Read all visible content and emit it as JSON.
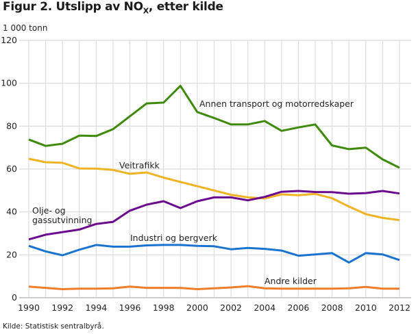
{
  "title_main": "Figur 2. Utslipp av NO",
  "title_sub": "X",
  "title_rest": ", etter kilde",
  "source": "Kilde: Statistisk sentralbyrå.",
  "chart_data": {
    "type": "line",
    "title": "Figur 2. Utslipp av NOX, etter kilde",
    "ylabel": "1 000 tonn",
    "xlabel": "",
    "ylim": [
      0,
      120
    ],
    "xlim": [
      1990,
      2012
    ],
    "yticks": [
      0,
      20,
      40,
      60,
      80,
      100,
      120
    ],
    "xticks": [
      1990,
      1992,
      1994,
      1996,
      1998,
      2000,
      2002,
      2004,
      2006,
      2008,
      2010,
      2012
    ],
    "grid": true,
    "x": [
      1990,
      1991,
      1992,
      1993,
      1994,
      1995,
      1996,
      1997,
      1998,
      1999,
      2000,
      2001,
      2002,
      2003,
      2004,
      2005,
      2006,
      2007,
      2008,
      2009,
      2010,
      2011,
      2012
    ],
    "series": [
      {
        "name": "Annen transport og motorredskaper",
        "color": "#3e8a0a",
        "values": [
          73.8,
          70.8,
          71.8,
          75.6,
          75.4,
          78.6,
          84.6,
          90.6,
          91.0,
          98.8,
          86.6,
          83.8,
          80.8,
          80.8,
          82.4,
          77.8,
          79.4,
          80.8,
          71.0,
          69.3,
          70.0,
          64.5,
          60.6
        ]
      },
      {
        "name": "Veitrafikk",
        "color": "#f0b323",
        "values": [
          64.8,
          63.2,
          62.9,
          60.3,
          60.2,
          59.6,
          57.8,
          58.4,
          56.0,
          54.0,
          52.0,
          50.0,
          48.0,
          46.8,
          46.3,
          48.2,
          47.8,
          48.4,
          46.4,
          42.5,
          39.0,
          37.2,
          36.2
        ]
      },
      {
        "name": "Olje- og gassutvinning",
        "color": "#6b0a8e",
        "values": [
          27.2,
          29.4,
          30.6,
          31.8,
          34.4,
          35.4,
          40.6,
          43.4,
          45.0,
          41.8,
          45.0,
          46.8,
          46.8,
          45.4,
          47.0,
          49.4,
          49.8,
          49.3,
          49.2,
          48.5,
          48.8,
          49.8,
          48.6
        ]
      },
      {
        "name": "Industri og bergverk",
        "color": "#1a73d1",
        "values": [
          24.2,
          21.6,
          19.8,
          22.4,
          24.6,
          23.8,
          23.8,
          24.4,
          24.6,
          24.6,
          24.2,
          24.0,
          22.6,
          23.2,
          22.8,
          22.0,
          19.6,
          20.2,
          20.8,
          16.4,
          20.8,
          20.2,
          17.6
        ]
      },
      {
        "name": "Andre kilder",
        "color": "#ef7d29",
        "values": [
          5.2,
          4.6,
          4.0,
          4.2,
          4.2,
          4.4,
          5.2,
          4.6,
          4.6,
          4.6,
          4.0,
          4.4,
          4.8,
          5.4,
          4.4,
          4.2,
          4.2,
          4.2,
          4.2,
          4.4,
          5.0,
          4.2,
          4.2
        ]
      }
    ],
    "annotations": [
      {
        "text": "Annen transport og motorredskaper",
        "series": 0
      },
      {
        "text": "Veitrafikk",
        "series": 1
      },
      {
        "text_lines": [
          "Olje- og",
          "gassutvinning"
        ],
        "series": 2
      },
      {
        "text": "Industri og bergverk",
        "series": 3
      },
      {
        "text": "Andre kilder",
        "series": 4
      }
    ]
  }
}
